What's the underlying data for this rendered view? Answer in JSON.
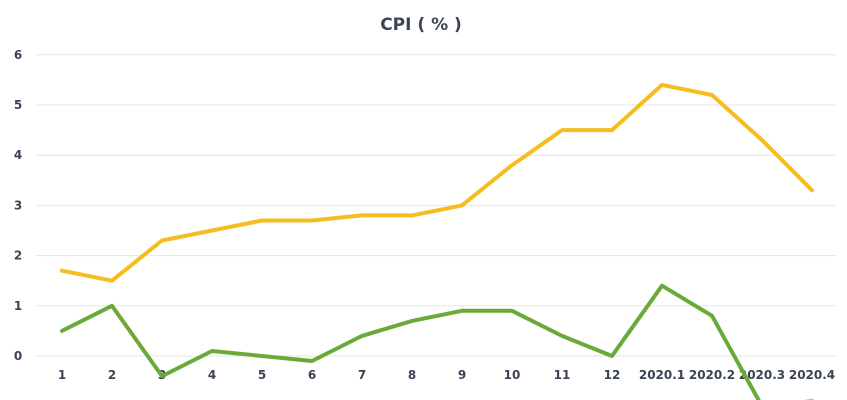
{
  "chart_data": {
    "type": "line",
    "title": "CPI ( % )",
    "xlabel": "",
    "ylabel": "",
    "categories": [
      "1",
      "2",
      "3",
      "4",
      "5",
      "6",
      "7",
      "8",
      "9",
      "10",
      "11",
      "12",
      "2020.1",
      "2020.2",
      "2020.3",
      "2020.4"
    ],
    "ylim": [
      -1,
      6
    ],
    "yticks": [
      "0",
      "1",
      "2",
      "3",
      "4",
      "5",
      "6"
    ],
    "grid": true,
    "legend": "none",
    "series": [
      {
        "color": "#f5bd1f",
        "values": [
          1.7,
          1.5,
          2.3,
          2.5,
          2.7,
          2.7,
          2.8,
          2.8,
          3.0,
          3.8,
          4.5,
          4.5,
          5.4,
          5.2,
          4.3,
          3.3
        ]
      },
      {
        "color": "#6aaa3a",
        "values": [
          0.5,
          1.0,
          -0.4,
          0.1,
          0.0,
          -0.1,
          0.4,
          0.7,
          0.9,
          0.9,
          0.4,
          0.0,
          1.4,
          0.8,
          -1.0,
          -0.9
        ]
      }
    ]
  }
}
